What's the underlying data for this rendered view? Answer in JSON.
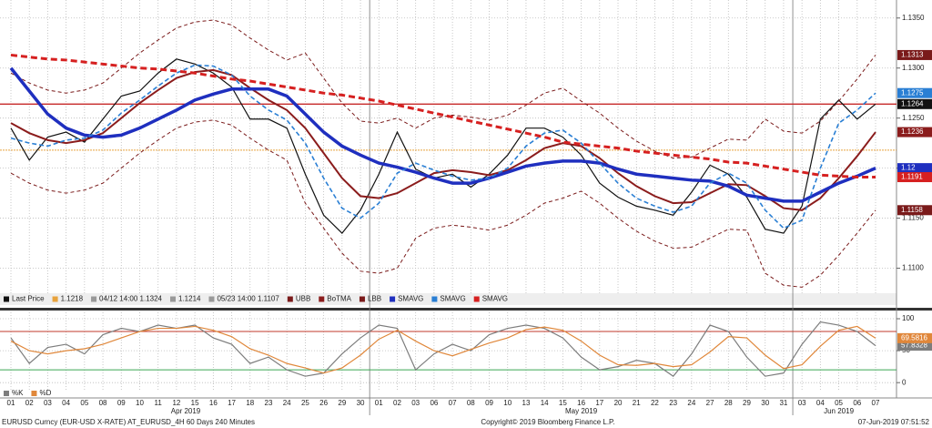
{
  "chart_data": [
    {
      "type": "line",
      "categories": [
        "01",
        "02",
        "03",
        "04",
        "05",
        "08",
        "09",
        "10",
        "11",
        "12",
        "15",
        "16",
        "17",
        "18",
        "23",
        "24",
        "25",
        "26",
        "29",
        "30",
        "01",
        "02",
        "03",
        "06",
        "07",
        "08",
        "09",
        "10",
        "13",
        "14",
        "15",
        "16",
        "17",
        "20",
        "21",
        "22",
        "23",
        "24",
        "27",
        "28",
        "29",
        "30",
        "31",
        "03",
        "04",
        "05",
        "06",
        "07"
      ],
      "months": [
        "Apr 2019",
        "May 2019",
        "Jun 2019"
      ],
      "ylim": [
        1.1075,
        1.1368
      ],
      "yticks": [
        {
          "value": 1.135,
          "label": "1.1350"
        },
        {
          "value": 1.13,
          "label": "1.1300"
        },
        {
          "value": 1.125,
          "label": "1.1250"
        },
        {
          "value": 1.12,
          "label": "1.1200"
        },
        {
          "value": 1.115,
          "label": "1.1150"
        },
        {
          "value": 1.11,
          "label": "1.1100"
        }
      ],
      "grid": true,
      "ref_line": {
        "value": 1.1218,
        "color": "#e8a33d"
      },
      "legend_notes": [
        "04/12 14:00 1.1324",
        "1.1214",
        "05/23 14:00 1.1107"
      ],
      "series": [
        {
          "name": "Last Price",
          "color": "#111111",
          "width": 1.2,
          "dash": "",
          "tag": true,
          "values": [
            1.124,
            1.1208,
            1.1231,
            1.1236,
            1.1226,
            1.1249,
            1.1272,
            1.1277,
            1.1295,
            1.1309,
            1.1304,
            1.1295,
            1.1281,
            1.1249,
            1.1249,
            1.124,
            1.1194,
            1.1153,
            1.1135,
            1.1158,
            1.1194,
            1.1236,
            1.1199,
            1.119,
            1.1194,
            1.1181,
            1.1194,
            1.1213,
            1.124,
            1.124,
            1.1231,
            1.1213,
            1.1185,
            1.1171,
            1.1162,
            1.1158,
            1.1153,
            1.1176,
            1.1203,
            1.1194,
            1.1171,
            1.1139,
            1.1135,
            1.1162,
            1.1249,
            1.1268,
            1.1249,
            1.1264
          ]
        },
        {
          "name": "UBB",
          "color": "#7a1a1a",
          "width": 1,
          "dash": "4 3",
          "tag": true,
          "values": [
            1.1295,
            1.1285,
            1.1278,
            1.1275,
            1.1278,
            1.1285,
            1.13,
            1.1315,
            1.1328,
            1.134,
            1.1346,
            1.1348,
            1.1343,
            1.133,
            1.1318,
            1.1308,
            1.1315,
            1.129,
            1.1265,
            1.1247,
            1.1245,
            1.125,
            1.124,
            1.125,
            1.1253,
            1.1251,
            1.1248,
            1.1253,
            1.1263,
            1.1275,
            1.128,
            1.1267,
            1.1255,
            1.124,
            1.1227,
            1.1217,
            1.121,
            1.1211,
            1.122,
            1.1229,
            1.1228,
            1.1249,
            1.1237,
            1.1235,
            1.1247,
            1.1267,
            1.1289,
            1.1313
          ]
        },
        {
          "name": "BoTMA",
          "color": "#8b1c1c",
          "width": 2,
          "dash": "",
          "tag": true,
          "values": [
            1.1245,
            1.1235,
            1.1228,
            1.1225,
            1.1228,
            1.1235,
            1.125,
            1.1265,
            1.1278,
            1.129,
            1.1296,
            1.1298,
            1.1293,
            1.128,
            1.1268,
            1.1258,
            1.124,
            1.1215,
            1.119,
            1.1172,
            1.117,
            1.1175,
            1.1185,
            1.1195,
            1.1198,
            1.1196,
            1.1193,
            1.1198,
            1.1208,
            1.122,
            1.1225,
            1.1222,
            1.121,
            1.1195,
            1.1182,
            1.1172,
            1.1165,
            1.1166,
            1.1175,
            1.1184,
            1.1183,
            1.1172,
            1.116,
            1.1158,
            1.117,
            1.119,
            1.1212,
            1.1236
          ]
        },
        {
          "name": "LBB",
          "color": "#7a1a1a",
          "width": 1,
          "dash": "4 3",
          "tag": true,
          "values": [
            1.1195,
            1.1185,
            1.1178,
            1.1175,
            1.1178,
            1.1185,
            1.12,
            1.1215,
            1.1228,
            1.124,
            1.1246,
            1.1248,
            1.1243,
            1.123,
            1.1218,
            1.1208,
            1.1165,
            1.114,
            1.1115,
            1.1097,
            1.1095,
            1.11,
            1.113,
            1.114,
            1.1143,
            1.1141,
            1.1138,
            1.1143,
            1.1153,
            1.1165,
            1.117,
            1.1177,
            1.1165,
            1.115,
            1.1137,
            1.1127,
            1.112,
            1.1121,
            1.113,
            1.1139,
            1.1138,
            1.1095,
            1.1083,
            1.1081,
            1.1093,
            1.1113,
            1.1135,
            1.1158
          ]
        },
        {
          "name": "SMAVG",
          "color": "#1f2fbf",
          "width": 3.5,
          "dash": "",
          "tag": true,
          "values": [
            1.13,
            1.1277,
            1.1254,
            1.124,
            1.1233,
            1.1231,
            1.1233,
            1.124,
            1.1249,
            1.1258,
            1.1268,
            1.1274,
            1.1279,
            1.1279,
            1.1279,
            1.1272,
            1.1254,
            1.1236,
            1.1222,
            1.1213,
            1.1205,
            1.1201,
            1.1196,
            1.119,
            1.1185,
            1.1185,
            1.119,
            1.1196,
            1.1202,
            1.1205,
            1.1207,
            1.1207,
            1.1205,
            1.1199,
            1.1194,
            1.1192,
            1.119,
            1.1188,
            1.1187,
            1.1182,
            1.1173,
            1.117,
            1.1167,
            1.1167,
            1.1176,
            1.1185,
            1.1192,
            1.12
          ]
        },
        {
          "name": "SMAVG",
          "color": "#2a7fd4",
          "width": 1.6,
          "dash": "5 3",
          "tag": true,
          "values": [
            1.123,
            1.1225,
            1.1222,
            1.1228,
            1.123,
            1.1238,
            1.1255,
            1.1268,
            1.1282,
            1.1295,
            1.1303,
            1.1302,
            1.1293,
            1.1272,
            1.1258,
            1.1248,
            1.1225,
            1.119,
            1.116,
            1.115,
            1.1165,
            1.1195,
            1.1205,
            1.1198,
            1.1192,
            1.1188,
            1.119,
            1.12,
            1.1222,
            1.1235,
            1.1238,
            1.1225,
            1.1205,
            1.1185,
            1.117,
            1.1162,
            1.1156,
            1.1162,
            1.1185,
            1.1195,
            1.1185,
            1.1158,
            1.114,
            1.1148,
            1.12,
            1.1245,
            1.1258,
            1.1275
          ]
        },
        {
          "name": "SMAVG",
          "color": "#d62020",
          "width": 3,
          "dash": "7 4",
          "tag": true,
          "values": [
            1.1313,
            1.1311,
            1.1309,
            1.1308,
            1.1306,
            1.1304,
            1.1302,
            1.13,
            1.1299,
            1.1297,
            1.1295,
            1.1292,
            1.1289,
            1.1287,
            1.1284,
            1.1281,
            1.1278,
            1.1275,
            1.1273,
            1.127,
            1.1267,
            1.1263,
            1.1259,
            1.1255,
            1.1251,
            1.1247,
            1.1243,
            1.1239,
            1.1235,
            1.1231,
            1.1226,
            1.1224,
            1.1222,
            1.122,
            1.1217,
            1.1215,
            1.1213,
            1.1211,
            1.1209,
            1.1206,
            1.1205,
            1.1202,
            1.1199,
            1.1196,
            1.1193,
            1.1192,
            1.1191,
            1.1191
          ]
        }
      ]
    },
    {
      "type": "line",
      "ylim": [
        -14,
        110
      ],
      "yticks": [
        100,
        50,
        0
      ],
      "levels": [
        {
          "value": 80,
          "color": "#c0392b"
        },
        {
          "value": 20,
          "color": "#3aa655"
        }
      ],
      "series": [
        {
          "name": "%K",
          "color": "#7d7d7d",
          "width": 1.2,
          "dash": "",
          "tag": true,
          "values": [
            70,
            30,
            55,
            60,
            45,
            75,
            85,
            80,
            90,
            85,
            90,
            70,
            60,
            30,
            40,
            20,
            10,
            15,
            45,
            70,
            90,
            85,
            20,
            45,
            60,
            50,
            75,
            85,
            90,
            85,
            70,
            40,
            20,
            25,
            35,
            30,
            10,
            45,
            90,
            80,
            40,
            10,
            15,
            60,
            95,
            90,
            80,
            57.8328
          ]
        },
        {
          "name": "%D",
          "color": "#e0873a",
          "width": 1.2,
          "dash": "",
          "tag": true,
          "values": [
            65,
            50,
            45,
            50,
            53,
            60,
            70,
            80,
            85,
            85,
            88,
            82,
            72,
            53,
            43,
            30,
            23,
            15,
            23,
            43,
            68,
            82,
            65,
            50,
            42,
            52,
            62,
            70,
            83,
            87,
            82,
            65,
            43,
            28,
            27,
            30,
            25,
            28,
            48,
            72,
            70,
            43,
            22,
            28,
            57,
            82,
            88,
            69.5816
          ]
        }
      ]
    }
  ],
  "footer": {
    "left": "EURUSD Curncy (EUR-USD X-RATE) AT_EURUSD_4H 60 Days 240 Minutes",
    "center": "Copyright© 2019 Bloomberg Finance L.P.",
    "right": "07-Jun-2019 07:51:52"
  }
}
